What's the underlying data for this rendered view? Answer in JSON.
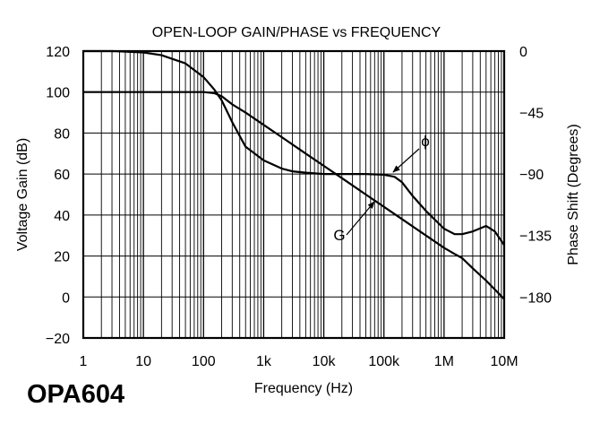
{
  "part_number": "OPA604",
  "colors": {
    "curve": "#000000",
    "grid": "#000000",
    "background": "#ffffff"
  },
  "chart_data": {
    "type": "line",
    "title": "OPEN-LOOP GAIN/PHASE vs FREQUENCY",
    "xlabel": "Frequency (Hz)",
    "ylabel": "Voltage Gain (dB)",
    "y2label": "Phase Shift (Degrees)",
    "xscale": "log",
    "xlim": [
      1,
      10000000
    ],
    "ylim": [
      -20,
      120
    ],
    "y2lim": [
      -210,
      0
    ],
    "grid": true,
    "x_ticks": [
      1,
      10,
      100,
      1000,
      10000,
      100000,
      1000000,
      10000000
    ],
    "x_tick_labels": [
      "1",
      "10",
      "100",
      "1k",
      "10k",
      "100k",
      "1M",
      "10M"
    ],
    "y_ticks": [
      -20,
      0,
      20,
      40,
      60,
      80,
      100,
      120
    ],
    "y_tick_labels": [
      "−20",
      "0",
      "20",
      "40",
      "60",
      "80",
      "100",
      "120"
    ],
    "y2_ticks": [
      0,
      -45,
      -90,
      -135,
      -180
    ],
    "y2_tick_labels": [
      "0",
      "−45",
      "−90",
      "−135",
      "−180"
    ],
    "series": [
      {
        "name": "G",
        "axis": "left",
        "x": [
          1,
          10,
          100,
          150,
          200,
          300,
          500,
          1000,
          2000,
          5000,
          10000,
          20000,
          50000,
          100000,
          200000,
          500000,
          1000000,
          1500000,
          2000000,
          3000000,
          5000000,
          10000000
        ],
        "y": [
          100,
          100,
          100,
          99.5,
          98,
          94,
          90,
          84,
          78,
          70,
          64,
          58,
          50,
          44,
          38,
          30,
          24,
          21,
          19,
          14,
          8,
          -1
        ]
      },
      {
        "name": "ϕ",
        "axis": "right",
        "x": [
          1,
          3,
          10,
          20,
          50,
          100,
          150,
          200,
          300,
          500,
          1000,
          2000,
          3000,
          5000,
          10000,
          20000,
          50000,
          100000,
          150000,
          200000,
          300000,
          500000,
          1000000,
          1500000,
          2000000,
          3000000,
          5000000,
          7000000,
          10000000
        ],
        "y": [
          0,
          0,
          -1,
          -3,
          -9,
          -19,
          -28,
          -36,
          -52,
          -70,
          -80,
          -86,
          -88,
          -89,
          -90,
          -90,
          -90,
          -90.5,
          -92,
          -96,
          -106,
          -117,
          -130,
          -134,
          -134,
          -132,
          -128,
          -132,
          -142
        ]
      }
    ],
    "annotations": [
      {
        "text": "ϕ",
        "series": "ϕ"
      },
      {
        "text": "G",
        "series": "G"
      }
    ]
  }
}
